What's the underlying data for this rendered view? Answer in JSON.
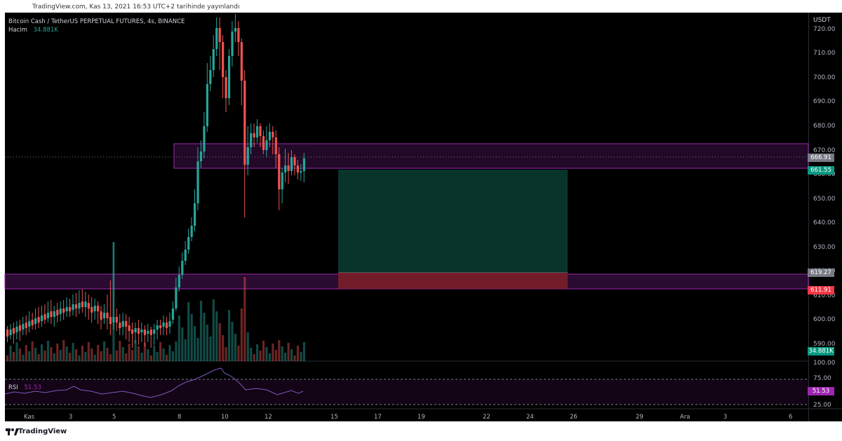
{
  "header": {
    "published": "TradingView.com, Kas 13, 2021 16:53 UTC+2 tarihinde yayınlandı"
  },
  "legend": {
    "symbol": "Bitcoin Cash / TetherUS PERPETUAL FUTURES, 4s, BINANCE",
    "volume_label": "Hacim",
    "volume_value": "34.881K",
    "rsi_label": "RSI",
    "rsi_value": "51.53"
  },
  "price_axis": {
    "currency": "USDT",
    "ticks": [
      "720.00",
      "710.00",
      "700.00",
      "690.00",
      "680.00",
      "670.00",
      "660.00",
      "650.00",
      "640.00",
      "630.00",
      "620.00",
      "610.00",
      "600.00",
      "590.00"
    ],
    "markers": {
      "current": "666.91",
      "entry": "661.55",
      "target": "619.27",
      "stop": "611.91",
      "volume": "34.881K",
      "rsi": "51.53"
    },
    "colors": {
      "current": "#787b86",
      "entry": "#089981",
      "target": "#787b86",
      "stop": "#f23645",
      "volume": "#089981",
      "rsi": "#9c27b0"
    }
  },
  "rsi_axis": {
    "ticks": [
      "100.00",
      "75.00",
      "25.00"
    ]
  },
  "time_axis": {
    "labels": [
      "Kas",
      "3",
      "5",
      "8",
      "10",
      "12",
      "15",
      "17",
      "19",
      "22",
      "24",
      "26",
      "29",
      "Ara",
      "3",
      "6"
    ]
  },
  "footer": {
    "brand": "TradingView"
  },
  "colors": {
    "up": "#26a69a",
    "down": "#ef5350",
    "zone": "#9c27b0",
    "rsi_line": "#7e57c2"
  }
}
